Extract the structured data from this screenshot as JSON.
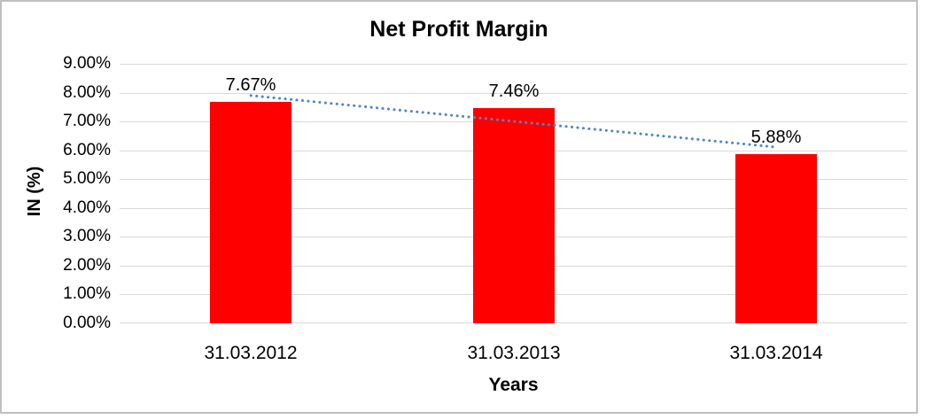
{
  "window": {
    "background": "#ffffff",
    "frame_border_color": "#bfbfbf"
  },
  "chart_data": {
    "type": "bar",
    "title": "Net Profit Margin",
    "categories": [
      "31.03.2012",
      "31.03.2013",
      "31.03.2014"
    ],
    "series": [
      {
        "name": "Net Profit Margin",
        "values": [
          7.67,
          7.46,
          5.88
        ]
      }
    ],
    "data_labels": [
      "7.67%",
      "7.46%",
      "5.88%"
    ],
    "xlabel": "Years",
    "ylabel": "IN (%)",
    "ylim": [
      0,
      9
    ],
    "ytick_labels": [
      "0.00%",
      "1.00%",
      "2.00%",
      "3.00%",
      "4.00%",
      "5.00%",
      "6.00%",
      "7.00%",
      "8.00%",
      "9.00%"
    ],
    "grid": true,
    "legend_position": "none",
    "colors": {
      "bar": "#ff0000",
      "trendline": "#4f86c6",
      "gridline": "#d9d9d9",
      "text": "#000000"
    },
    "trendline": {
      "type": "linear",
      "style": "dotted",
      "start_value": 7.9,
      "end_value": 6.11,
      "in_front_of_bars": true
    }
  }
}
